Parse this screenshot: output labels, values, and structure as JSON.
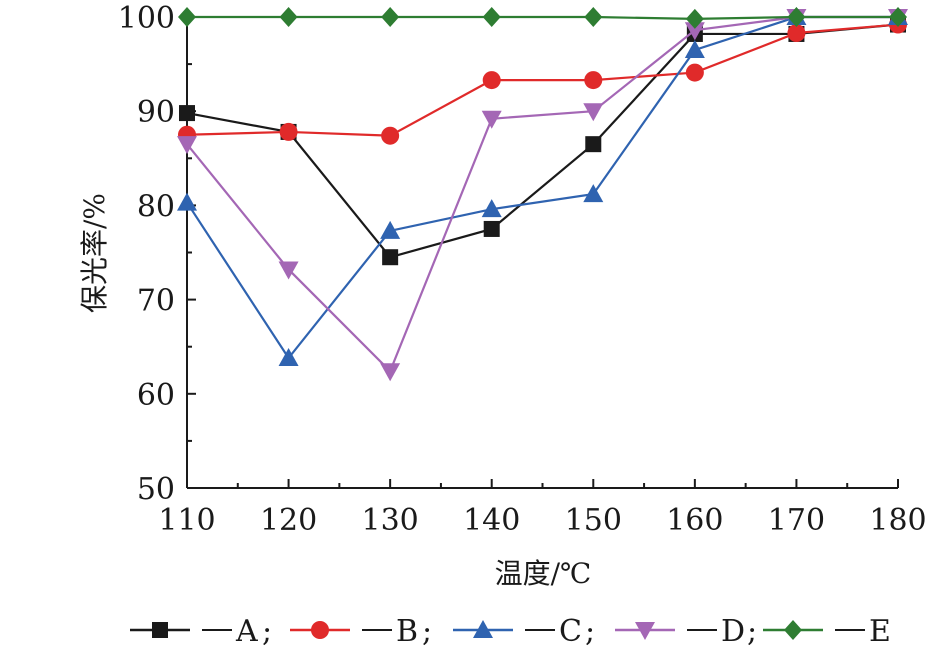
{
  "chart_data": {
    "type": "line",
    "xlabel": "温度/℃",
    "ylabel": "保光率/%",
    "xlim": [
      110,
      180
    ],
    "ylim": [
      50,
      100
    ],
    "xticks": [
      110,
      120,
      130,
      140,
      150,
      160,
      170,
      180
    ],
    "yticks": [
      50,
      60,
      70,
      80,
      90,
      100
    ],
    "x": [
      110,
      120,
      130,
      140,
      150,
      160,
      170,
      180
    ],
    "grid": false,
    "legend_position": "bottom",
    "series": [
      {
        "name": "A",
        "marker": "square",
        "color": "#1a1a1a",
        "values": [
          89.8,
          87.8,
          74.5,
          77.5,
          86.5,
          98.2,
          98.2,
          99.2
        ]
      },
      {
        "name": "B",
        "marker": "circle",
        "color": "#e02a2a",
        "values": [
          87.5,
          87.8,
          87.4,
          93.3,
          93.3,
          94.1,
          98.3,
          99.2
        ]
      },
      {
        "name": "C",
        "marker": "triangle-up",
        "color": "#2f63b0",
        "values": [
          80.3,
          63.8,
          77.3,
          79.6,
          81.2,
          96.5,
          100.0,
          100.0
        ]
      },
      {
        "name": "D",
        "marker": "triangle-down",
        "color": "#a467b5",
        "values": [
          86.5,
          73.2,
          62.4,
          89.2,
          90.0,
          98.6,
          100.0,
          100.0
        ]
      },
      {
        "name": "E",
        "marker": "diamond",
        "color": "#2e7d32",
        "values": [
          100.0,
          100.0,
          100.0,
          100.0,
          100.0,
          99.8,
          100.0,
          100.0
        ]
      }
    ]
  }
}
